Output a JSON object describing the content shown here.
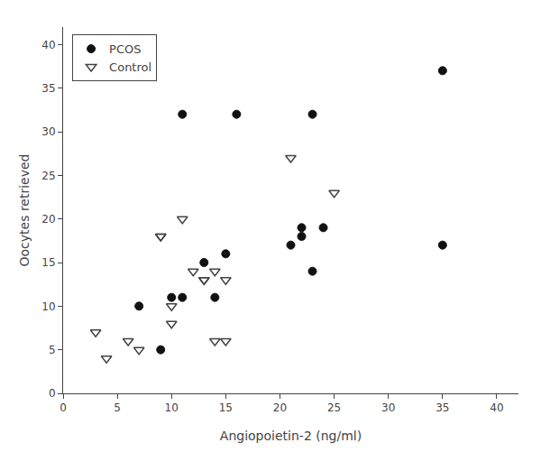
{
  "chart_data": {
    "type": "scatter",
    "xlabel": "Angiopoietin-2 (ng/ml)",
    "ylabel": "Oocytes retrieved",
    "series": [
      {
        "name": "PCOS",
        "color": "#111111",
        "marker": "circle",
        "x": [
          7,
          9,
          10,
          11,
          11,
          13,
          14,
          15,
          16,
          21,
          22,
          22,
          23,
          23,
          24,
          35,
          35
        ],
        "values": [
          10,
          5,
          11,
          11,
          32,
          15,
          11,
          16,
          32,
          17,
          18,
          19,
          14,
          32,
          19,
          37,
          17
        ]
      },
      {
        "name": "Control",
        "color": "#444444",
        "marker": "triangle-down-open",
        "x": [
          3,
          4,
          6,
          7,
          9,
          9,
          10,
          10,
          11,
          12,
          13,
          13,
          14,
          14,
          15,
          15,
          21,
          25
        ],
        "values": [
          7,
          4,
          6,
          5,
          18,
          18,
          10,
          8,
          20,
          14,
          13,
          13,
          14,
          6,
          13,
          6,
          27,
          23
        ]
      }
    ],
    "xlim": [
      0,
      42
    ],
    "ylim": [
      0,
      42
    ],
    "xticks": [
      0,
      5,
      10,
      15,
      20,
      25,
      30,
      35,
      40
    ],
    "yticks": [
      0,
      5,
      10,
      15,
      20,
      25,
      30,
      35,
      40
    ],
    "grid": false,
    "legend": "upper left"
  }
}
